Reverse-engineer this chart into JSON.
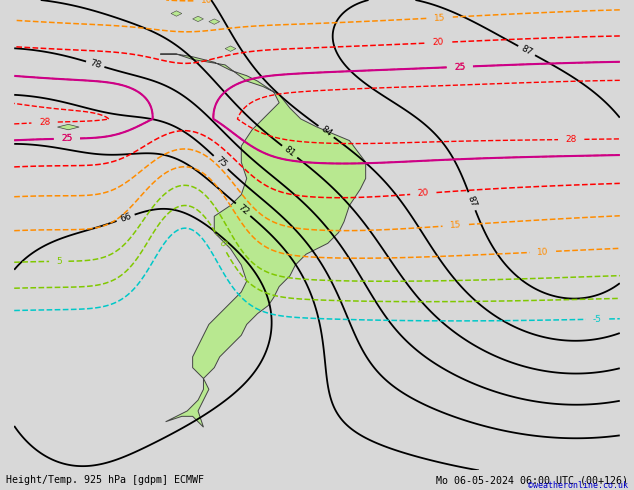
{
  "title_left": "Height/Temp. 925 hPa [gdpm] ECMWF",
  "title_right": "Mo 06-05-2024 06:00 UTC (00+126)",
  "credit": "©weatheronline.co.uk",
  "bg_color": "#d8d8d8",
  "land_color": "#b8e890",
  "gray_color": "#a0a0a0",
  "fig_width": 6.34,
  "fig_height": 4.9,
  "dpi": 100,
  "credit_color": "#0000cc",
  "col_black": "#000000",
  "col_red": "#ff0000",
  "col_orange": "#ff8c00",
  "col_green": "#80c800",
  "col_cyan": "#00c8c8",
  "col_pink": "#cc0088",
  "font_mono": "monospace"
}
